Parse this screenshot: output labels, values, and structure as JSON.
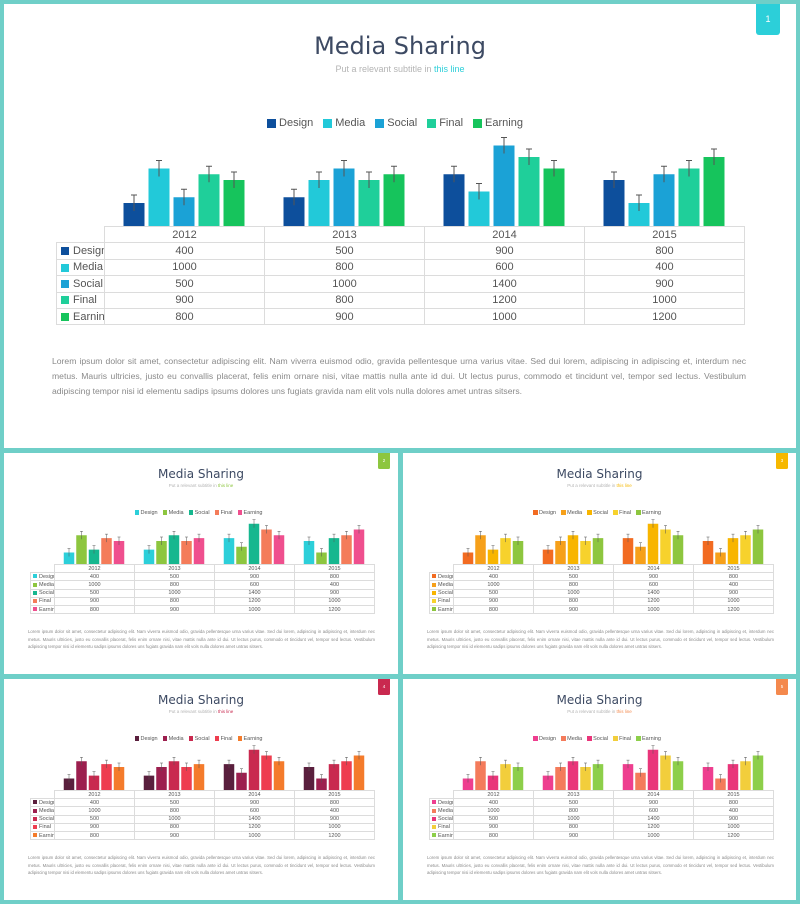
{
  "slides": [
    {
      "title": "Media Sharing",
      "subtitle_prefix": "Put a relevant subtitle in",
      "subtitle_highlight": "this line",
      "page_number": "1",
      "accent": "#2ccfd9",
      "series_colors": [
        "#0d4f9c",
        "#22c9d9",
        "#1ba2d6",
        "#1fcf9a",
        "#16c45c"
      ],
      "body": "Lorem ipsum dolor sit amet, consectetur adipiscing elit. Nam viverra euismod odio, gravida pellentesque urna varius vitae. Sed dui lorem, adipiscing in adipiscing et, interdum nec metus. Mauris ultricies, justo eu convallis placerat, felis enim ornare nisi, vitae mattis nulla ante id dui. Ut lectus purus, commodo et tincidunt vel, tempor sed lectus. Vestibulum adipiscing tempor nisi id elementu sadips ipsums dolores uns fugiats gravida nam elit vols nulla dolores amet untras sitsers."
    },
    {
      "title": "Media Sharing",
      "subtitle_prefix": "Put a relevant subtitle in",
      "subtitle_highlight": "this line",
      "page_number": "2",
      "accent": "#8dc63f",
      "series_colors": [
        "#2ccfd9",
        "#8dc63f",
        "#16b78f",
        "#f47c5a",
        "#ef4f8e"
      ],
      "body": "Lorem ipsum dolor sit amet, consectetur adipiscing elit. Nam viverra euismod odio, gravida pellentesque urna varius vitae. Sed dui lorem, adipiscing in adipiscing et, interdum nec metus. Mauris ultricies, justo eu convallis placerat, felis enim ornare nisi, vitae mattis nulla ante id dui. Ut lectus purus, commodo et tincidunt vel, tempor sed lectus. Vestibulum adipiscing tempor nisi id elementu sadips ipsums dolores uns fugiats gravida nam elit vols nulla dolores amet untras sitsers."
    },
    {
      "title": "Media Sharing",
      "subtitle_prefix": "Put a relevant subtitle in",
      "subtitle_highlight": "this line",
      "page_number": "3",
      "accent": "#f6b800",
      "series_colors": [
        "#f26b21",
        "#f6a01a",
        "#f8b500",
        "#f7d22c",
        "#8dc63f"
      ],
      "body": "Lorem ipsum dolor sit amet, consectetur adipiscing elit. Nam viverra euismod odio, gravida pellentesque urna varius vitae. Sed dui lorem, adipiscing in adipiscing et, interdum nec metus. Mauris ultricies, justo eu convallis placerat, felis enim ornare nisi, vitae mattis nulla ante id dui. Ut lectus purus, commodo et tincidunt vel, tempor sed lectus. Vestibulum adipiscing tempor nisi id elementu sadips ipsums dolores uns fugiats gravida nam elit vols nulla dolores amet untras sitsers."
    },
    {
      "title": "Media Sharing",
      "subtitle_prefix": "Put a relevant subtitle in",
      "subtitle_highlight": "this line",
      "page_number": "4",
      "accent": "#c9294f",
      "series_colors": [
        "#5a1f3d",
        "#9c1f4e",
        "#c9294f",
        "#ee3d4f",
        "#f47b2b"
      ],
      "body": "Lorem ipsum dolor sit amet, consectetur adipiscing elit. Nam viverra euismod odio, gravida pellentesque urna varius vitae. Sed dui lorem, adipiscing in adipiscing et, interdum nec metus. Mauris ultricies, justo eu convallis placerat, felis enim ornare nisi, vitae mattis nulla ante id dui. Ut lectus purus, commodo et tincidunt vel, tempor sed lectus. Vestibulum adipiscing tempor nisi id elementu sadips ipsums dolores uns fugiats gravida nam elit vols nulla dolores amet untras sitsers."
    },
    {
      "title": "Media Sharing",
      "subtitle_prefix": "Put a relevant subtitle in",
      "subtitle_highlight": "this line",
      "page_number": "5",
      "accent": "#f4894d",
      "series_colors": [
        "#ee3e8f",
        "#f47b5b",
        "#e9357a",
        "#f2ce3c",
        "#8dcf4a"
      ],
      "body": "Lorem ipsum dolor sit amet, consectetur adipiscing elit. Nam viverra euismod odio, gravida pellentesque urna varius vitae. Sed dui lorem, adipiscing in adipiscing et, interdum nec metus. Mauris ultricies, justo eu convallis placerat, felis enim ornare nisi, vitae mattis nulla ante id dui. Ut lectus purus, commodo et tincidunt vel, tempor sed lectus. Vestibulum adipiscing tempor nisi id elementu sadips ipsums dolores uns fugiats gravida nam elit vols nulla dolores amet untras sitsers."
    }
  ],
  "chart_data": {
    "type": "bar",
    "categories": [
      "2012",
      "2013",
      "2014",
      "2015"
    ],
    "series": [
      {
        "name": "Design",
        "values": [
          400,
          500,
          900,
          800
        ]
      },
      {
        "name": "Media",
        "values": [
          1000,
          800,
          600,
          400
        ]
      },
      {
        "name": "Social",
        "values": [
          500,
          1000,
          1400,
          900
        ]
      },
      {
        "name": "Final",
        "values": [
          900,
          800,
          1200,
          1000
        ]
      },
      {
        "name": "Earning",
        "values": [
          800,
          900,
          1000,
          1200
        ]
      }
    ],
    "error_bars": true,
    "legend_position": "top",
    "grid": false,
    "with_data_table": true
  }
}
